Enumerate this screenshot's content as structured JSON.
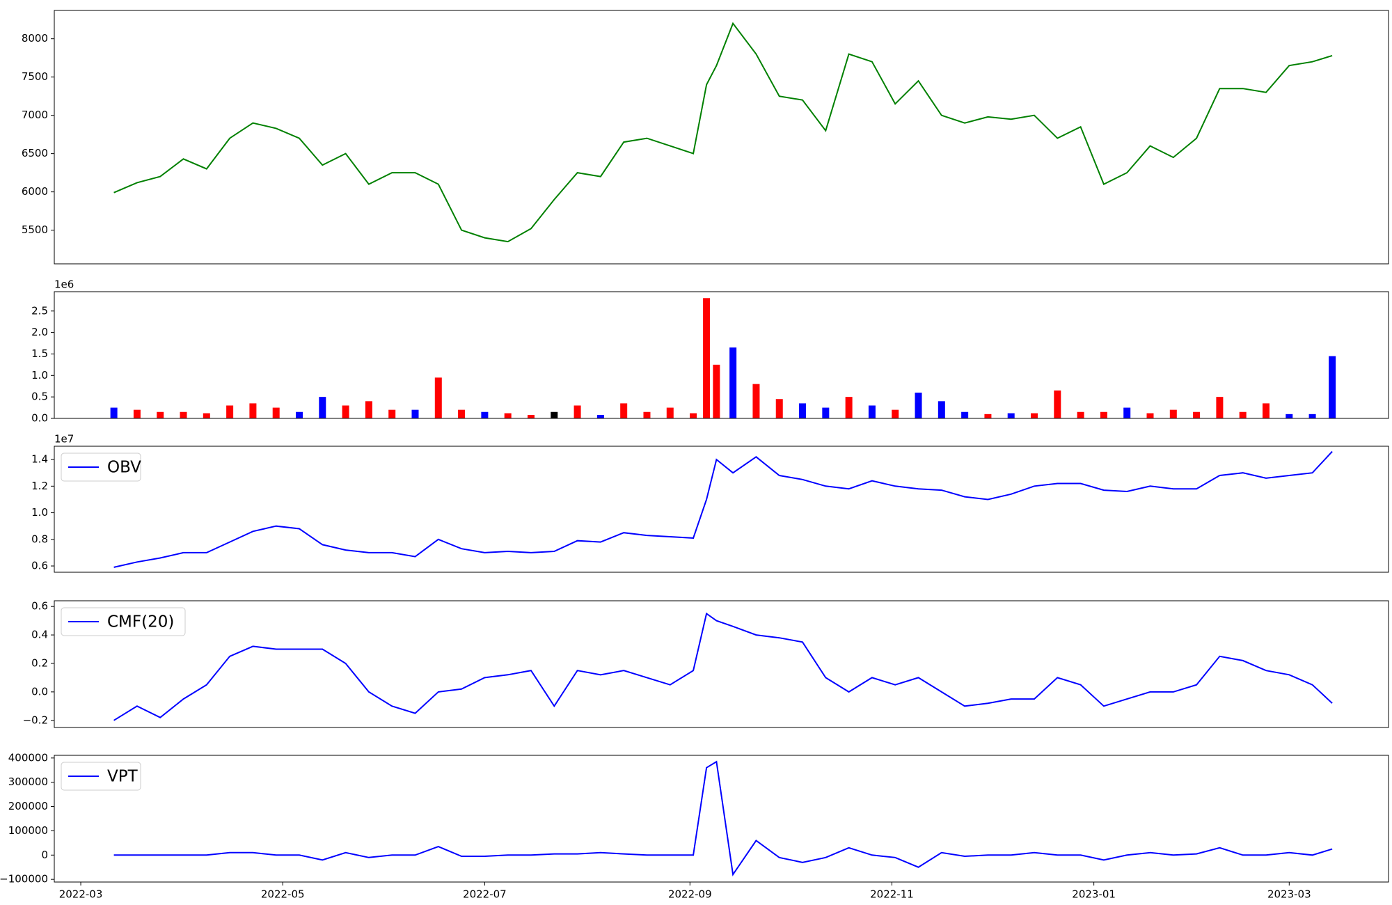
{
  "chart_data": [
    {
      "type": "line",
      "x": [
        "2022-03-11",
        "2022-03-18",
        "2022-03-25",
        "2022-04-01",
        "2022-04-08",
        "2022-04-15",
        "2022-04-22",
        "2022-04-29",
        "2022-05-06",
        "2022-05-13",
        "2022-05-20",
        "2022-05-27",
        "2022-06-03",
        "2022-06-10",
        "2022-06-17",
        "2022-06-24",
        "2022-07-01",
        "2022-07-08",
        "2022-07-15",
        "2022-07-22",
        "2022-07-29",
        "2022-08-05",
        "2022-08-12",
        "2022-08-19",
        "2022-08-26",
        "2022-09-02",
        "2022-09-06",
        "2022-09-09",
        "2022-09-14",
        "2022-09-21",
        "2022-09-28",
        "2022-10-05",
        "2022-10-12",
        "2022-10-19",
        "2022-10-26",
        "2022-11-02",
        "2022-11-09",
        "2022-11-16",
        "2022-11-23",
        "2022-11-30",
        "2022-12-07",
        "2022-12-14",
        "2022-12-21",
        "2022-12-28",
        "2023-01-04",
        "2023-01-11",
        "2023-01-18",
        "2023-01-25",
        "2023-02-01",
        "2023-02-08",
        "2023-02-15",
        "2023-02-22",
        "2023-03-01",
        "2023-03-08",
        "2023-03-14"
      ],
      "series": [
        {
          "color": "#008000",
          "values": [
            5990,
            6120,
            6200,
            6430,
            6300,
            6700,
            6900,
            6830,
            6700,
            6350,
            6500,
            6100,
            6250,
            6250,
            6100,
            5500,
            5400,
            5350,
            5520,
            5900,
            6250,
            6200,
            6650,
            6700,
            6600,
            6500,
            7400,
            7650,
            8200,
            7800,
            7250,
            7200,
            6800,
            7800,
            7700,
            7150,
            7450,
            7000,
            6900,
            6980,
            6950,
            7000,
            6700,
            6850,
            6100,
            6250,
            6600,
            6450,
            6700,
            7350,
            7350,
            7300,
            7650,
            7700,
            7780
          ]
        }
      ],
      "ylim": [
        5060,
        8370
      ],
      "yticks": [
        5500,
        6000,
        6500,
        7000,
        7500,
        8000
      ]
    },
    {
      "type": "bar",
      "x": [
        "2022-03-11",
        "2022-03-18",
        "2022-03-25",
        "2022-04-01",
        "2022-04-08",
        "2022-04-15",
        "2022-04-22",
        "2022-04-29",
        "2022-05-06",
        "2022-05-13",
        "2022-05-20",
        "2022-05-27",
        "2022-06-03",
        "2022-06-10",
        "2022-06-17",
        "2022-06-24",
        "2022-07-01",
        "2022-07-08",
        "2022-07-15",
        "2022-07-22",
        "2022-07-29",
        "2022-08-05",
        "2022-08-12",
        "2022-08-19",
        "2022-08-26",
        "2022-09-02",
        "2022-09-06",
        "2022-09-09",
        "2022-09-14",
        "2022-09-21",
        "2022-09-28",
        "2022-10-05",
        "2022-10-12",
        "2022-10-19",
        "2022-10-26",
        "2022-11-02",
        "2022-11-09",
        "2022-11-16",
        "2022-11-23",
        "2022-11-30",
        "2022-12-07",
        "2022-12-14",
        "2022-12-21",
        "2022-12-28",
        "2023-01-04",
        "2023-01-11",
        "2023-01-18",
        "2023-01-25",
        "2023-02-01",
        "2023-02-08",
        "2023-02-15",
        "2023-02-22",
        "2023-03-01",
        "2023-03-08",
        "2023-03-14"
      ],
      "values": [
        250000,
        200000,
        150000,
        150000,
        120000,
        300000,
        350000,
        250000,
        150000,
        500000,
        300000,
        400000,
        200000,
        200000,
        950000,
        200000,
        150000,
        120000,
        80000,
        150000,
        300000,
        80000,
        350000,
        150000,
        250000,
        120000,
        2800000,
        1250000,
        1650000,
        800000,
        450000,
        350000,
        250000,
        500000,
        300000,
        200000,
        600000,
        400000,
        150000,
        100000,
        120000,
        120000,
        650000,
        150000,
        150000,
        250000,
        120000,
        200000,
        150000,
        500000,
        150000,
        350000,
        100000,
        100000,
        1450000
      ],
      "colors": [
        "#0000ff",
        "#ff0000",
        "#ff0000",
        "#ff0000",
        "#ff0000",
        "#ff0000",
        "#ff0000",
        "#ff0000",
        "#0000ff",
        "#0000ff",
        "#ff0000",
        "#ff0000",
        "#ff0000",
        "#0000ff",
        "#ff0000",
        "#ff0000",
        "#0000ff",
        "#ff0000",
        "#ff0000",
        "#000000",
        "#ff0000",
        "#0000ff",
        "#ff0000",
        "#ff0000",
        "#ff0000",
        "#ff0000",
        "#ff0000",
        "#ff0000",
        "#0000ff",
        "#ff0000",
        "#ff0000",
        "#0000ff",
        "#0000ff",
        "#ff0000",
        "#0000ff",
        "#ff0000",
        "#0000ff",
        "#0000ff",
        "#0000ff",
        "#ff0000",
        "#0000ff",
        "#ff0000",
        "#ff0000",
        "#ff0000",
        "#ff0000",
        "#0000ff",
        "#ff0000",
        "#ff0000",
        "#ff0000",
        "#ff0000",
        "#ff0000",
        "#ff0000",
        "#0000ff",
        "#0000ff",
        "#0000ff"
      ],
      "offset_label": "1e6",
      "ylim": [
        0,
        2950000
      ],
      "yticks": [
        {
          "value": 0,
          "label": "0.0"
        },
        {
          "value": 500000,
          "label": "0.5"
        },
        {
          "value": 1000000,
          "label": "1.0"
        },
        {
          "value": 1500000,
          "label": "1.5"
        },
        {
          "value": 2000000,
          "label": "2.0"
        },
        {
          "value": 2500000,
          "label": "2.5"
        }
      ]
    },
    {
      "type": "line",
      "x": [
        "2022-03-11",
        "2022-03-18",
        "2022-03-25",
        "2022-04-01",
        "2022-04-08",
        "2022-04-15",
        "2022-04-22",
        "2022-04-29",
        "2022-05-06",
        "2022-05-13",
        "2022-05-20",
        "2022-05-27",
        "2022-06-03",
        "2022-06-10",
        "2022-06-17",
        "2022-06-24",
        "2022-07-01",
        "2022-07-08",
        "2022-07-15",
        "2022-07-22",
        "2022-07-29",
        "2022-08-05",
        "2022-08-12",
        "2022-08-19",
        "2022-08-26",
        "2022-09-02",
        "2022-09-06",
        "2022-09-09",
        "2022-09-14",
        "2022-09-21",
        "2022-09-28",
        "2022-10-05",
        "2022-10-12",
        "2022-10-19",
        "2022-10-26",
        "2022-11-02",
        "2022-11-09",
        "2022-11-16",
        "2022-11-23",
        "2022-11-30",
        "2022-12-07",
        "2022-12-14",
        "2022-12-21",
        "2022-12-28",
        "2023-01-04",
        "2023-01-11",
        "2023-01-18",
        "2023-01-25",
        "2023-02-01",
        "2023-02-08",
        "2023-02-15",
        "2023-02-22",
        "2023-03-01",
        "2023-03-08",
        "2023-03-14"
      ],
      "series": [
        {
          "name": "OBV",
          "color": "#0000ff",
          "values": [
            5900000,
            6300000,
            6600000,
            7000000,
            7000000,
            7800000,
            8600000,
            9000000,
            8800000,
            7600000,
            7200000,
            7000000,
            7000000,
            6700000,
            8000000,
            7300000,
            7000000,
            7100000,
            7000000,
            7100000,
            7900000,
            7800000,
            8500000,
            8300000,
            8200000,
            8100000,
            11000000,
            14000000,
            13000000,
            14200000,
            12800000,
            12500000,
            12000000,
            11800000,
            12400000,
            12000000,
            11800000,
            11700000,
            11200000,
            11000000,
            11400000,
            12000000,
            12200000,
            12200000,
            11700000,
            11600000,
            12000000,
            11800000,
            11800000,
            12800000,
            13000000,
            12600000,
            12800000,
            13000000,
            14600000
          ]
        }
      ],
      "offset_label": "1e7",
      "legend": "upper left",
      "ylim": [
        5530000,
        15000000
      ],
      "yticks": [
        {
          "value": 6000000,
          "label": "0.6"
        },
        {
          "value": 8000000,
          "label": "0.8"
        },
        {
          "value": 10000000,
          "label": "1.0"
        },
        {
          "value": 12000000,
          "label": "1.2"
        },
        {
          "value": 14000000,
          "label": "1.4"
        }
      ]
    },
    {
      "type": "line",
      "x": [
        "2022-03-11",
        "2022-03-18",
        "2022-03-25",
        "2022-04-01",
        "2022-04-08",
        "2022-04-15",
        "2022-04-22",
        "2022-04-29",
        "2022-05-06",
        "2022-05-13",
        "2022-05-20",
        "2022-05-27",
        "2022-06-03",
        "2022-06-10",
        "2022-06-17",
        "2022-06-24",
        "2022-07-01",
        "2022-07-08",
        "2022-07-15",
        "2022-07-22",
        "2022-07-29",
        "2022-08-05",
        "2022-08-12",
        "2022-08-19",
        "2022-08-26",
        "2022-09-02",
        "2022-09-06",
        "2022-09-09",
        "2022-09-14",
        "2022-09-21",
        "2022-09-28",
        "2022-10-05",
        "2022-10-12",
        "2022-10-19",
        "2022-10-26",
        "2022-11-02",
        "2022-11-09",
        "2022-11-16",
        "2022-11-23",
        "2022-11-30",
        "2022-12-07",
        "2022-12-14",
        "2022-12-21",
        "2022-12-28",
        "2023-01-04",
        "2023-01-11",
        "2023-01-18",
        "2023-01-25",
        "2023-02-01",
        "2023-02-08",
        "2023-02-15",
        "2023-02-22",
        "2023-03-01",
        "2023-03-08",
        "2023-03-14"
      ],
      "series": [
        {
          "name": "CMF(20)",
          "color": "#0000ff",
          "values": [
            -0.2,
            -0.1,
            -0.18,
            -0.05,
            0.05,
            0.25,
            0.32,
            0.3,
            0.3,
            0.3,
            0.2,
            0.0,
            -0.1,
            -0.15,
            0.0,
            0.02,
            0.1,
            0.12,
            0.15,
            -0.1,
            0.15,
            0.12,
            0.15,
            0.1,
            0.05,
            0.15,
            0.55,
            0.5,
            0.46,
            0.4,
            0.38,
            0.35,
            0.1,
            0.0,
            0.1,
            0.05,
            0.1,
            0.0,
            -0.1,
            -0.08,
            -0.05,
            -0.05,
            0.1,
            0.05,
            -0.1,
            -0.05,
            0.0,
            0.0,
            0.05,
            0.25,
            0.22,
            0.15,
            0.12,
            0.05,
            -0.08
          ]
        }
      ],
      "legend": "upper left",
      "ylim": [
        -0.25,
        0.64
      ],
      "yticks": [
        {
          "value": -0.2,
          "label": "−0.2"
        },
        {
          "value": 0,
          "label": "0.0"
        },
        0.2,
        0.4,
        0.6
      ]
    },
    {
      "type": "line",
      "x": [
        "2022-03-11",
        "2022-03-18",
        "2022-03-25",
        "2022-04-01",
        "2022-04-08",
        "2022-04-15",
        "2022-04-22",
        "2022-04-29",
        "2022-05-06",
        "2022-05-13",
        "2022-05-20",
        "2022-05-27",
        "2022-06-03",
        "2022-06-10",
        "2022-06-17",
        "2022-06-24",
        "2022-07-01",
        "2022-07-08",
        "2022-07-15",
        "2022-07-22",
        "2022-07-29",
        "2022-08-05",
        "2022-08-12",
        "2022-08-19",
        "2022-08-26",
        "2022-09-02",
        "2022-09-06",
        "2022-09-09",
        "2022-09-14",
        "2022-09-21",
        "2022-09-28",
        "2022-10-05",
        "2022-10-12",
        "2022-10-19",
        "2022-10-26",
        "2022-11-02",
        "2022-11-09",
        "2022-11-16",
        "2022-11-23",
        "2022-11-30",
        "2022-12-07",
        "2022-12-14",
        "2022-12-21",
        "2022-12-28",
        "2023-01-04",
        "2023-01-11",
        "2023-01-18",
        "2023-01-25",
        "2023-02-01",
        "2023-02-08",
        "2023-02-15",
        "2023-02-22",
        "2023-03-01",
        "2023-03-08",
        "2023-03-14"
      ],
      "series": [
        {
          "name": "VPT",
          "color": "#0000ff",
          "values": [
            0,
            0,
            0,
            0,
            0,
            10000,
            10000,
            0,
            0,
            -20000,
            10000,
            -10000,
            0,
            0,
            35000,
            -5000,
            -5000,
            0,
            0,
            5000,
            5000,
            10000,
            5000,
            0,
            0,
            0,
            360000,
            385000,
            -80000,
            60000,
            -10000,
            -30000,
            -10000,
            30000,
            0,
            -10000,
            -50000,
            10000,
            -5000,
            0,
            0,
            10000,
            0,
            0,
            -20000,
            0,
            10000,
            0,
            5000,
            30000,
            0,
            0,
            10000,
            0,
            25000
          ]
        }
      ],
      "legend": "upper left",
      "ylim": [
        -111000,
        411000
      ],
      "yticks": [
        {
          "value": -100000,
          "label": "−100000"
        },
        0,
        100000,
        200000,
        300000,
        400000
      ],
      "xlim": [
        "2022-02-21",
        "2023-03-31"
      ],
      "xticks": [
        {
          "value": "2022-03-01",
          "label": "2022-03"
        },
        {
          "value": "2022-05-01",
          "label": "2022-05"
        },
        {
          "value": "2022-07-01",
          "label": "2022-07"
        },
        {
          "value": "2022-09-01",
          "label": "2022-09"
        },
        {
          "value": "2022-11-01",
          "label": "2022-11"
        },
        {
          "value": "2023-01-01",
          "label": "2023-01"
        },
        {
          "value": "2023-03-01",
          "label": "2023-03"
        }
      ]
    }
  ]
}
